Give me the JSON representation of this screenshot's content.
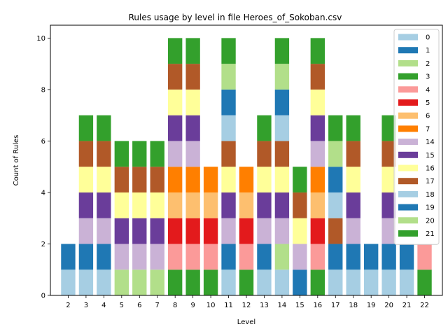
{
  "chart_data": {
    "type": "bar",
    "stacked": true,
    "title": "Rules usage by level in file Heroes_of_Sokoban.csv",
    "xlabel": "Level",
    "ylabel": "Count of Rules",
    "categories": [
      "2",
      "3",
      "4",
      "5",
      "6",
      "7",
      "8",
      "9",
      "10",
      "11",
      "12",
      "13",
      "14",
      "15",
      "16",
      "17",
      "18",
      "19",
      "20",
      "21",
      "22"
    ],
    "ylim": [
      0,
      10.5
    ],
    "yticks": [
      0,
      2,
      4,
      6,
      8,
      10
    ],
    "legend_position": "upper right",
    "grid": false,
    "series": [
      {
        "name": "0",
        "color": "#a6cee3",
        "values": [
          1,
          1,
          1,
          0,
          0,
          0,
          0,
          0,
          0,
          1,
          0,
          1,
          1,
          0,
          0,
          1,
          1,
          1,
          1,
          1,
          0
        ]
      },
      {
        "name": "1",
        "color": "#1f78b4",
        "values": [
          1,
          1,
          1,
          0,
          0,
          0,
          0,
          0,
          0,
          1,
          0,
          1,
          0,
          1,
          0,
          1,
          1,
          1,
          1,
          1,
          0
        ]
      },
      {
        "name": "2",
        "color": "#b2df8a",
        "values": [
          0,
          0,
          0,
          1,
          1,
          1,
          0,
          0,
          0,
          0,
          0,
          0,
          1,
          0,
          0,
          0,
          0,
          0,
          0,
          0,
          0
        ]
      },
      {
        "name": "3",
        "color": "#33a02c",
        "values": [
          0,
          0,
          0,
          0,
          0,
          0,
          1,
          1,
          1,
          0,
          1,
          0,
          0,
          0,
          1,
          0,
          0,
          0,
          0,
          0,
          1
        ]
      },
      {
        "name": "4",
        "color": "#fb9a99",
        "values": [
          0,
          0,
          0,
          0,
          0,
          0,
          1,
          1,
          1,
          0,
          1,
          0,
          0,
          0,
          1,
          0,
          0,
          0,
          0,
          0,
          1
        ]
      },
      {
        "name": "5",
        "color": "#e31a1c",
        "values": [
          0,
          0,
          0,
          0,
          0,
          0,
          1,
          1,
          1,
          0,
          1,
          0,
          0,
          0,
          1,
          0,
          0,
          0,
          0,
          0,
          0
        ]
      },
      {
        "name": "6",
        "color": "#fdbf6f",
        "values": [
          0,
          0,
          0,
          0,
          0,
          0,
          1,
          1,
          1,
          0,
          1,
          0,
          0,
          0,
          1,
          0,
          0,
          0,
          0,
          0,
          0
        ]
      },
      {
        "name": "7",
        "color": "#ff7f00",
        "values": [
          0,
          0,
          0,
          0,
          0,
          0,
          1,
          1,
          1,
          0,
          1,
          0,
          0,
          0,
          1,
          0,
          0,
          0,
          0,
          0,
          0
        ]
      },
      {
        "name": "14",
        "color": "#cab2d6",
        "values": [
          0,
          1,
          1,
          1,
          1,
          1,
          1,
          1,
          0,
          1,
          0,
          1,
          1,
          1,
          1,
          0,
          1,
          0,
          1,
          0,
          0
        ]
      },
      {
        "name": "15",
        "color": "#6a3d9a",
        "values": [
          0,
          1,
          1,
          1,
          1,
          1,
          1,
          1,
          0,
          1,
          0,
          1,
          1,
          0,
          1,
          0,
          1,
          0,
          1,
          0,
          0
        ]
      },
      {
        "name": "16",
        "color": "#ffff99",
        "values": [
          0,
          1,
          1,
          1,
          1,
          1,
          1,
          1,
          0,
          1,
          0,
          1,
          1,
          1,
          1,
          0,
          1,
          0,
          1,
          0,
          0
        ]
      },
      {
        "name": "17",
        "color": "#b15928",
        "values": [
          0,
          1,
          1,
          1,
          1,
          1,
          1,
          1,
          0,
          1,
          0,
          1,
          1,
          1,
          1,
          1,
          1,
          0,
          1,
          0,
          0
        ]
      },
      {
        "name": "18",
        "color": "#a6cee3",
        "values": [
          0,
          0,
          0,
          0,
          0,
          0,
          0,
          0,
          0,
          1,
          0,
          0,
          1,
          0,
          0,
          1,
          0,
          0,
          0,
          0,
          0
        ]
      },
      {
        "name": "19",
        "color": "#1f78b4",
        "values": [
          0,
          0,
          0,
          0,
          0,
          0,
          0,
          0,
          0,
          1,
          0,
          0,
          1,
          0,
          0,
          1,
          0,
          0,
          0,
          0,
          0
        ]
      },
      {
        "name": "20",
        "color": "#b2df8a",
        "values": [
          0,
          0,
          0,
          0,
          0,
          0,
          0,
          0,
          0,
          1,
          0,
          0,
          1,
          0,
          0,
          1,
          0,
          0,
          0,
          0,
          0
        ]
      },
      {
        "name": "21",
        "color": "#33a02c",
        "values": [
          0,
          1,
          1,
          1,
          1,
          1,
          1,
          1,
          0,
          1,
          0,
          1,
          1,
          1,
          1,
          1,
          1,
          0,
          1,
          0,
          0
        ]
      }
    ]
  }
}
